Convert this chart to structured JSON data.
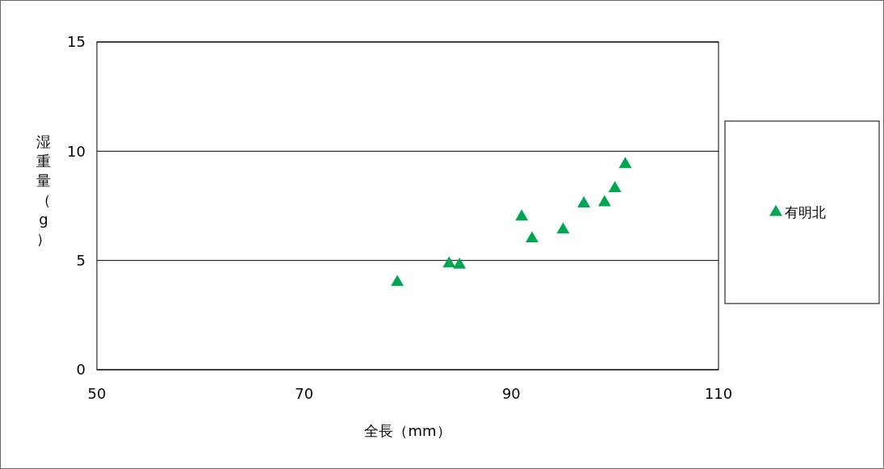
{
  "chart_data": {
    "type": "scatter",
    "xlabel": "全長（mm）",
    "ylabel": "湿重量（g）",
    "xlim": [
      50,
      110
    ],
    "xticks": [
      50,
      70,
      90,
      110
    ],
    "ylim": [
      0,
      15
    ],
    "yticks": [
      0,
      5,
      10,
      15
    ],
    "grid": "y",
    "legend": "right",
    "marker": "triangle",
    "series": [
      {
        "name": "有明北",
        "color": "#00a651",
        "x": [
          79,
          84,
          85,
          91,
          92,
          95,
          97,
          99,
          100,
          101
        ],
        "values": [
          4.0,
          4.85,
          4.8,
          7.0,
          6.0,
          6.4,
          7.6,
          7.65,
          8.3,
          9.4
        ]
      }
    ]
  }
}
